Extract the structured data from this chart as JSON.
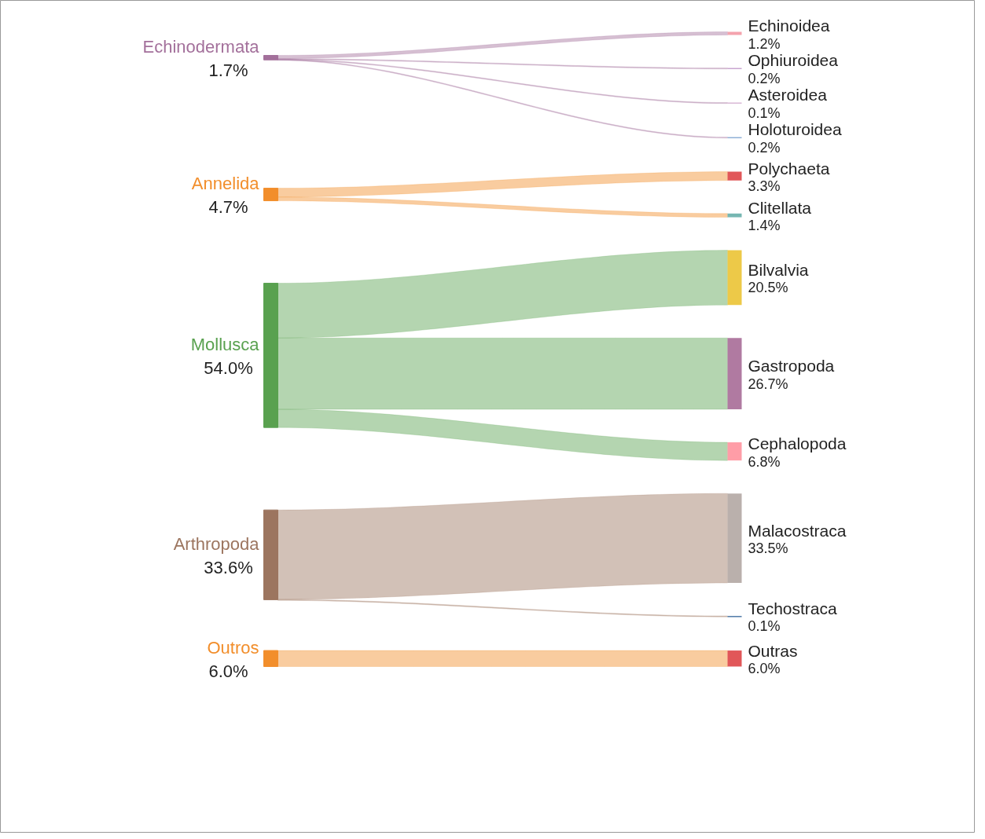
{
  "chart_data": {
    "type": "other",
    "categories": [
      "Echinoidea",
      "Ophiuroidea",
      "Asteroidea",
      "Holoturoidea",
      "Polychaeta",
      "Clitellata",
      "Bilvalvia",
      "Gastropoda",
      "Cephalopoda",
      "Malacostraca",
      "Techostraca",
      "Outras"
    ],
    "colors": [
      "#f4a3ad",
      "#c9a6d1",
      "#d9b8d6",
      "#8fb0d6",
      "#e15759",
      "#76b7b2",
      "#edc948",
      "#b07aa1",
      "#ff9da7",
      "#bab0ac",
      "#4e79a7",
      "#e15759"
    ],
    "series": [
      {
        "name": "Echinodermata",
        "color": "#a3709b",
        "values": [
          1.2,
          0.2,
          0.1,
          0.2,
          null,
          null,
          null,
          null,
          null,
          null,
          null,
          null
        ],
        "value_labels": [
          "1.2%",
          "0.2%",
          "0.1%",
          "0.2%",
          null,
          null,
          null,
          null,
          null,
          null,
          null,
          null
        ]
      },
      {
        "name": "Annelida",
        "color": "#f28e2b",
        "values": [
          null,
          null,
          null,
          null,
          3.3,
          1.4,
          null,
          null,
          null,
          null,
          null,
          null
        ],
        "value_labels": [
          null,
          null,
          null,
          null,
          "3.3%",
          "1.4%",
          null,
          null,
          null,
          null,
          null,
          null
        ]
      },
      {
        "name": "Mollusca",
        "color": "#59a14f",
        "values": [
          null,
          null,
          null,
          null,
          null,
          null,
          20.5,
          26.7,
          6.8,
          null,
          null,
          null
        ],
        "value_labels": [
          null,
          null,
          null,
          null,
          null,
          null,
          "20.5%",
          "26.7%",
          "6.8%",
          null,
          null,
          null
        ]
      },
      {
        "name": "Arthropoda",
        "color": "#9c755f",
        "values": [
          null,
          null,
          null,
          null,
          null,
          null,
          null,
          null,
          null,
          33.5,
          0.1,
          null
        ],
        "value_labels": [
          null,
          null,
          null,
          null,
          null,
          null,
          null,
          null,
          null,
          "33.5%",
          "0.1%",
          null
        ]
      },
      {
        "name": "Outros",
        "color": "#f28e2b",
        "values": [
          null,
          null,
          null,
          null,
          null,
          null,
          null,
          null,
          null,
          null,
          null,
          6.0
        ],
        "value_labels": [
          null,
          null,
          null,
          null,
          null,
          null,
          null,
          null,
          null,
          null,
          null,
          "6.0%"
        ]
      }
    ],
    "totals": [
      "1.7%",
      "4.7%",
      "54.0%",
      "33.6%",
      "6.0%"
    ]
  }
}
